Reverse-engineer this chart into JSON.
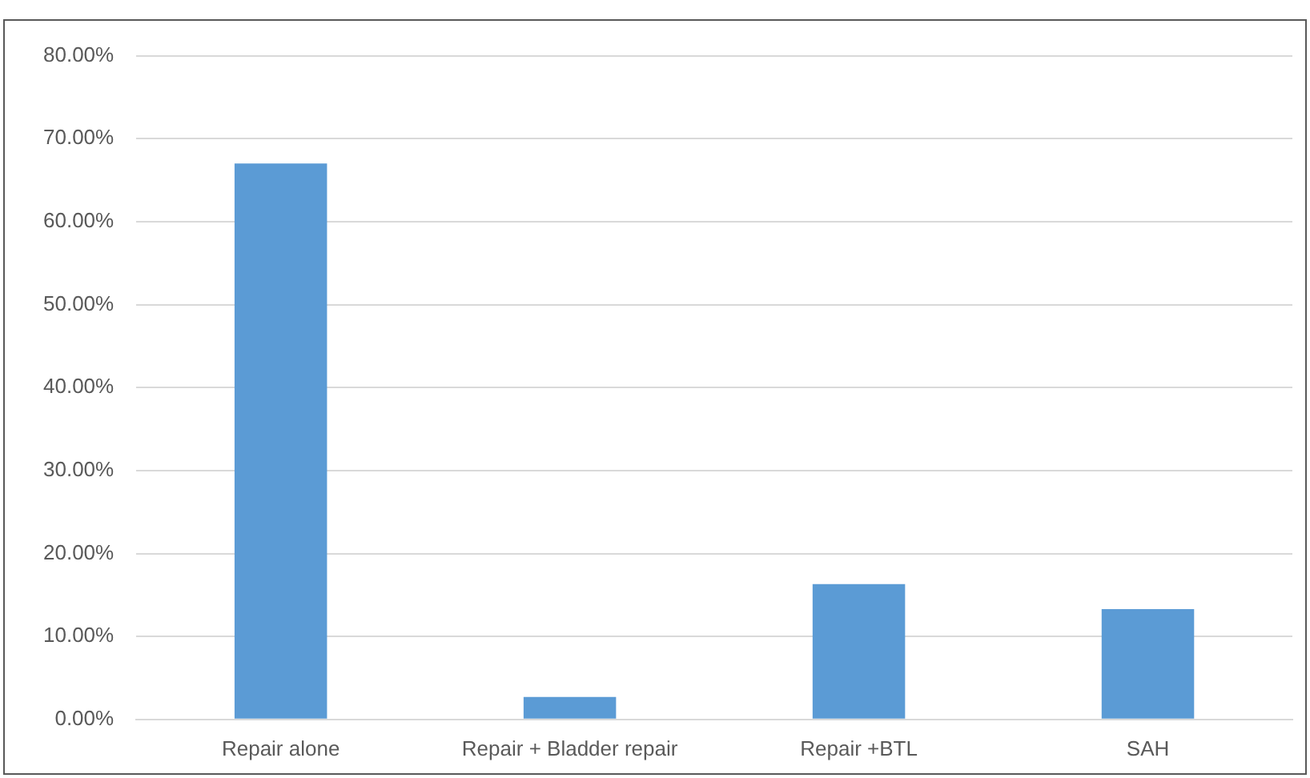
{
  "chart_data": {
    "type": "bar",
    "categories": [
      "Repair alone",
      "Repair + Bladder repair",
      "Repair +BTL",
      "SAH"
    ],
    "values": [
      67,
      2.7,
      16.3,
      13.3
    ],
    "color": "#5b9bd5",
    "ylim": [
      0,
      80
    ],
    "yticks": [
      {
        "value": 0,
        "label": "0.00%"
      },
      {
        "value": 10,
        "label": "10.00%"
      },
      {
        "value": 20,
        "label": "20.00%"
      },
      {
        "value": 30,
        "label": "30.00%"
      },
      {
        "value": 40,
        "label": "40.00%"
      },
      {
        "value": 50,
        "label": "50.00%"
      },
      {
        "value": 60,
        "label": "60.00%"
      },
      {
        "value": 70,
        "label": "70.00%"
      },
      {
        "value": 80,
        "label": "80.00%"
      }
    ],
    "grid": "y",
    "legend": false
  }
}
